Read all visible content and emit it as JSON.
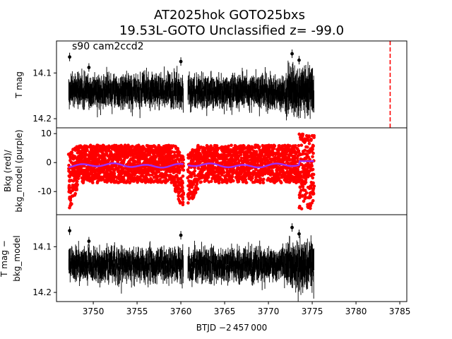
{
  "figure": {
    "title_line1": "AT2025hok  GOTO25bxs",
    "title_line2": "19.53L-GOTO Unclassified z= -99.0",
    "x_label": "BTJD −2 457 000",
    "x_ticks": [
      3750,
      3755,
      3760,
      3765,
      3770,
      3775,
      3780,
      3785
    ]
  },
  "chart_data": [
    {
      "type": "scatter",
      "panel": "top",
      "ylabel": "T mag",
      "annotation": "s90 cam2ccd2",
      "xlim": [
        3745.8,
        3785.8
      ],
      "ylim": [
        14.22,
        14.03
      ],
      "inverted_y": true,
      "yticks": [
        14.1,
        14.2
      ],
      "series_color": "#000000",
      "baseline": 14.14,
      "scatter": 0.025,
      "gap": [
        3760.3,
        3760.8
      ],
      "x_range": [
        3747.2,
        3775.2
      ],
      "vline": {
        "x": 3783.9,
        "color": "#ff0000",
        "style": "dashed"
      },
      "outliers": [
        [
          3747.3,
          14.065
        ],
        [
          3772.7,
          14.058
        ],
        [
          3773.5,
          14.072
        ],
        [
          3749.5,
          14.088
        ],
        [
          3760.0,
          14.075
        ]
      ]
    },
    {
      "type": "scatter",
      "panel": "middle",
      "ylabel": "Bkg (red)/\nbkg_model (purple)",
      "ylabel_line1": "Bkg (red)/",
      "ylabel_line2": "bkg_model (purple)",
      "xlim": [
        3745.8,
        3785.8
      ],
      "ylim": [
        -18,
        12
      ],
      "yticks": [
        10,
        0,
        -10
      ],
      "series": [
        {
          "name": "Bkg",
          "color": "#ff0000"
        },
        {
          "name": "bkg_model",
          "color": "#9b30ff"
        }
      ],
      "gap": [
        3760.3,
        3760.8
      ],
      "x_range": [
        3747.2,
        3775.2
      ]
    },
    {
      "type": "scatter",
      "panel": "bottom",
      "ylabel": "T mag −\nbkg_model",
      "ylabel_line1": "T mag −",
      "ylabel_line2": "bkg_model",
      "xlim": [
        3745.8,
        3785.8
      ],
      "ylim": [
        14.22,
        14.03
      ],
      "inverted_y": true,
      "yticks": [
        14.1,
        14.2
      ],
      "series_color": "#000000",
      "baseline": 14.14,
      "scatter": 0.025,
      "gap": [
        3760.3,
        3760.8
      ],
      "x_range": [
        3747.2,
        3775.2
      ],
      "outliers": [
        [
          3747.3,
          14.065
        ],
        [
          3772.7,
          14.058
        ],
        [
          3773.5,
          14.072
        ],
        [
          3749.5,
          14.088
        ],
        [
          3760.0,
          14.075
        ]
      ]
    }
  ]
}
